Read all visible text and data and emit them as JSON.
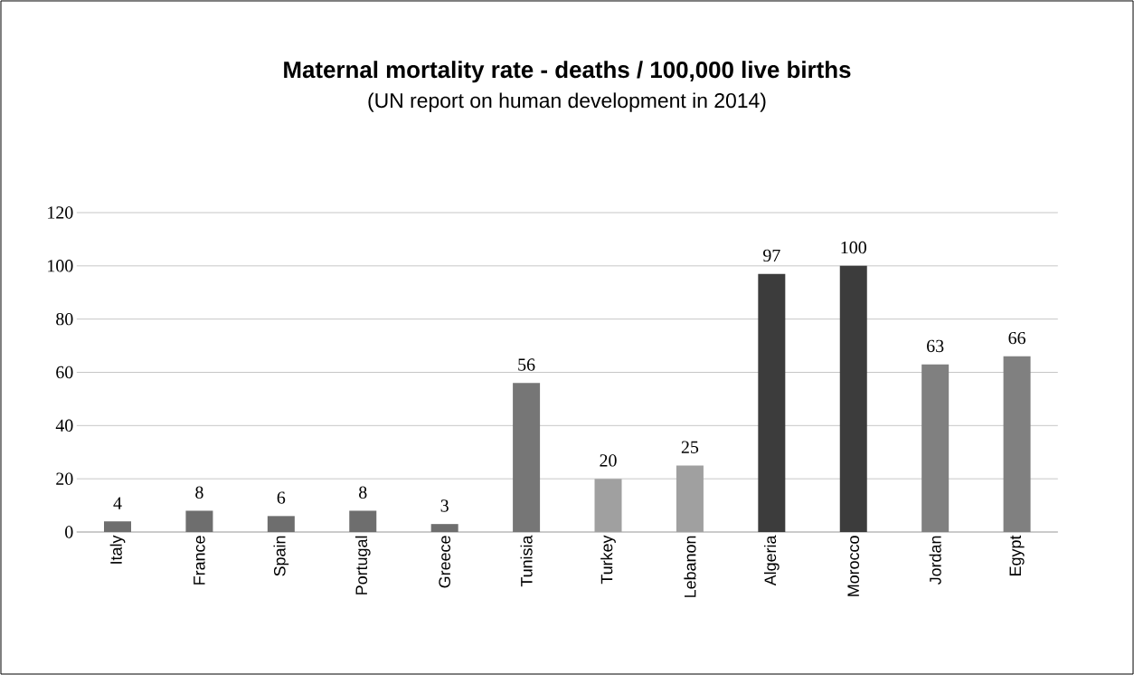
{
  "chart_data": {
    "type": "bar",
    "title": "Maternal mortality rate - deaths / 100,000 live births",
    "subtitle": "(UN report on human development in 2014)",
    "categories": [
      "Italy",
      "France",
      "Spain",
      "Portugal",
      "Greece",
      "Tunisia",
      "Turkey",
      "Lebanon",
      "Algeria",
      "Morocco",
      "Jordan",
      "Egypt"
    ],
    "values": [
      4,
      8,
      6,
      8,
      3,
      56,
      20,
      25,
      97,
      100,
      63,
      66
    ],
    "colors": [
      "#6e6e6e",
      "#6e6e6e",
      "#6e6e6e",
      "#6e6e6e",
      "#6e6e6e",
      "#767676",
      "#a0a0a0",
      "#a0a0a0",
      "#3c3c3c",
      "#3c3c3c",
      "#808080",
      "#808080"
    ],
    "ylim": [
      0,
      120
    ],
    "yticks": [
      0,
      20,
      40,
      60,
      80,
      100,
      120
    ],
    "grid": "y",
    "data_labels": true
  }
}
